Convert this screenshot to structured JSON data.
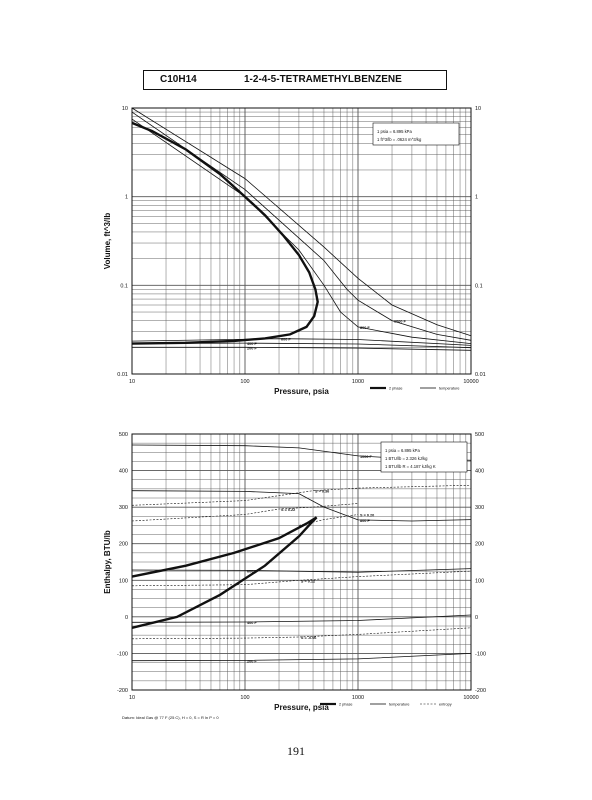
{
  "header": {
    "formula": "C10H14",
    "name": "1-2-4-5-TETRAMETHYLBENZENE"
  },
  "page_number": "191",
  "datum_note": "Datum: Ideal Gas @ 77 F (25 C), H = 0, S = R ln P = 0",
  "colors": {
    "line": "#111111",
    "grid": "#555555"
  },
  "chart_data": [
    {
      "type": "line",
      "scale": "log-log",
      "xlabel": "Pressure, psia",
      "ylabel": "Volume, ft^3/lb",
      "xlim": [
        10,
        10000
      ],
      "ylim": [
        0.01,
        10
      ],
      "x_ticks": [
        "10",
        "100",
        "1000",
        "10000"
      ],
      "y_ticks": [
        "0.01",
        "0.1",
        "1",
        "10"
      ],
      "conversion_notes": [
        "1 psia = 6.895 kPa",
        "1 ft^3/lb = .0624 m^3/kg"
      ],
      "legend": [
        "2 phase",
        "temperature"
      ],
      "series": [
        {
          "kind": "2 phase",
          "points": [
            [
              10,
              0.022
            ],
            [
              30,
              0.0225
            ],
            [
              80,
              0.0236
            ],
            [
              150,
              0.0252
            ],
            [
              250,
              0.028
            ],
            [
              350,
              0.034
            ],
            [
              410,
              0.045
            ],
            [
              440,
              0.065
            ],
            [
              420,
              0.09
            ],
            [
              370,
              0.14
            ],
            [
              300,
              0.22
            ],
            [
              220,
              0.36
            ],
            [
              150,
              0.62
            ],
            [
              100,
              1.0
            ],
            [
              60,
              1.8
            ],
            [
              30,
              3.4
            ],
            [
              15,
              5.5
            ],
            [
              10,
              6.8
            ]
          ]
        },
        {
          "kind": "temperature",
          "name": "200 F",
          "label": "200 F",
          "points": [
            [
              10,
              0.02
            ],
            [
              100,
              0.02
            ],
            [
              1000,
              0.0196
            ],
            [
              10000,
              0.0185
            ]
          ]
        },
        {
          "kind": "temperature",
          "name": "400 F",
          "label": "400 F",
          "points": [
            [
              10,
              0.022
            ],
            [
              100,
              0.0223
            ],
            [
              1000,
              0.0218
            ],
            [
              10000,
              0.0198
            ]
          ]
        },
        {
          "kind": "temperature",
          "name": "600 F",
          "label": "600 F",
          "points": [
            [
              10,
              0.0235
            ],
            [
              200,
              0.025
            ],
            [
              1000,
              0.0245
            ],
            [
              10000,
              0.021
            ]
          ]
        },
        {
          "kind": "temperature",
          "name": "800 F",
          "label": "800 F",
          "points": [
            [
              10,
              7.5
            ],
            [
              100,
              1.0
            ],
            [
              300,
              0.25
            ],
            [
              500,
              0.1
            ],
            [
              700,
              0.05
            ],
            [
              1000,
              0.034
            ],
            [
              3000,
              0.026
            ],
            [
              10000,
              0.022
            ]
          ]
        },
        {
          "kind": "temperature",
          "name": "1000 F",
          "label": "1000 F",
          "points": [
            [
              10,
              9.0
            ],
            [
              100,
              1.2
            ],
            [
              500,
              0.19
            ],
            [
              800,
              0.09
            ],
            [
              1000,
              0.068
            ],
            [
              2000,
              0.04
            ],
            [
              5000,
              0.028
            ],
            [
              10000,
              0.024
            ]
          ]
        },
        {
          "kind": "temperature",
          "name": "",
          "label": "",
          "points": [
            [
              10,
              10.0
            ],
            [
              100,
              1.6
            ],
            [
              500,
              0.27
            ],
            [
              1000,
              0.12
            ],
            [
              2000,
              0.06
            ],
            [
              5000,
              0.036
            ],
            [
              10000,
              0.027
            ]
          ]
        }
      ]
    },
    {
      "type": "line",
      "scale": "semi-log-x",
      "xlabel": "Pressure, psia",
      "ylabel": "Enthalpy, BTU/lb",
      "xlim": [
        10,
        10000
      ],
      "ylim": [
        -200,
        500
      ],
      "x_ticks": [
        "10",
        "100",
        "1000",
        "10000"
      ],
      "y_ticks": [
        "-200",
        "-100",
        "0",
        "100",
        "200",
        "300",
        "400",
        "500"
      ],
      "conversion_notes": [
        "1 psia = 6.895 kPa",
        "1 BTU/lb = 2.326 kJ/kg",
        "1 BTU/lb R = 4.187 kJ/kg K"
      ],
      "legend": [
        "2 phase",
        "temperature",
        "entropy"
      ],
      "series": [
        {
          "kind": "2 phase",
          "points": [
            [
              10,
              110
            ],
            [
              30,
              140
            ],
            [
              80,
              175
            ],
            [
              200,
              215
            ],
            [
              350,
              255
            ],
            [
              430,
              272
            ],
            [
              400,
              262
            ],
            [
              300,
              220
            ],
            [
              150,
              140
            ],
            [
              60,
              60
            ],
            [
              25,
              0
            ],
            [
              10,
              -30
            ]
          ]
        },
        {
          "kind": "temperature",
          "name": "1000 F",
          "label": "1000 F",
          "points": [
            [
              10,
              470
            ],
            [
              100,
              468
            ],
            [
              300,
              462
            ],
            [
              1000,
              440
            ],
            [
              3000,
              432
            ],
            [
              10000,
              428
            ]
          ]
        },
        {
          "kind": "temperature",
          "name": "800 F",
          "label": "800 F",
          "points": [
            [
              10,
              345
            ],
            [
              100,
              343
            ],
            [
              300,
              337
            ],
            [
              500,
              300
            ],
            [
              1000,
              265
            ],
            [
              3000,
              262
            ],
            [
              10000,
              266
            ]
          ]
        },
        {
          "kind": "temperature",
          "name": "600 F",
          "label": "600 F",
          "points": [
            [
              10,
              128
            ],
            [
              100,
              127
            ],
            [
              1000,
              122
            ],
            [
              10000,
              132
            ]
          ]
        },
        {
          "kind": "temperature",
          "name": "400 F",
          "label": "400 F",
          "points": [
            [
              10,
              -15
            ],
            [
              100,
              -14
            ],
            [
              1000,
              -10
            ],
            [
              10000,
              5
            ]
          ]
        },
        {
          "kind": "temperature",
          "name": "200 F",
          "label": "200 F",
          "points": [
            [
              10,
              -120
            ],
            [
              100,
              -119
            ],
            [
              1000,
              -115
            ],
            [
              10000,
              -100
            ]
          ]
        },
        {
          "kind": "entropy",
          "name": "S = 0.36",
          "label": "S = 0.36",
          "points": [
            [
              10,
              305
            ],
            [
              100,
              318
            ],
            [
              400,
              345
            ],
            [
              1000,
              352
            ],
            [
              10000,
              360
            ]
          ]
        },
        {
          "kind": "entropy",
          "name": "S = 0.22",
          "label": "S = 0.22",
          "points": [
            [
              10,
              262
            ],
            [
              100,
              280
            ],
            [
              200,
              295
            ],
            [
              400,
              300
            ],
            [
              1000,
              310
            ]
          ]
        },
        {
          "kind": "entropy",
          "name": "S = 0.20",
          "label": "S = 0.20",
          "points": [
            [
              300,
              250
            ],
            [
              500,
              266
            ],
            [
              1000,
              280
            ]
          ]
        },
        {
          "kind": "entropy",
          "name": "S = 0.12",
          "label": "S = 0.12",
          "points": [
            [
              10,
              85
            ],
            [
              100,
              88
            ],
            [
              300,
              100
            ],
            [
              1000,
              110
            ],
            [
              10000,
              125
            ]
          ]
        },
        {
          "kind": "entropy",
          "name": "S = -0.06",
          "label": "S = -0.06",
          "points": [
            [
              10,
              -60
            ],
            [
              100,
              -58
            ],
            [
              300,
              -55
            ],
            [
              1000,
              -48
            ],
            [
              10000,
              -30
            ]
          ]
        }
      ]
    }
  ]
}
